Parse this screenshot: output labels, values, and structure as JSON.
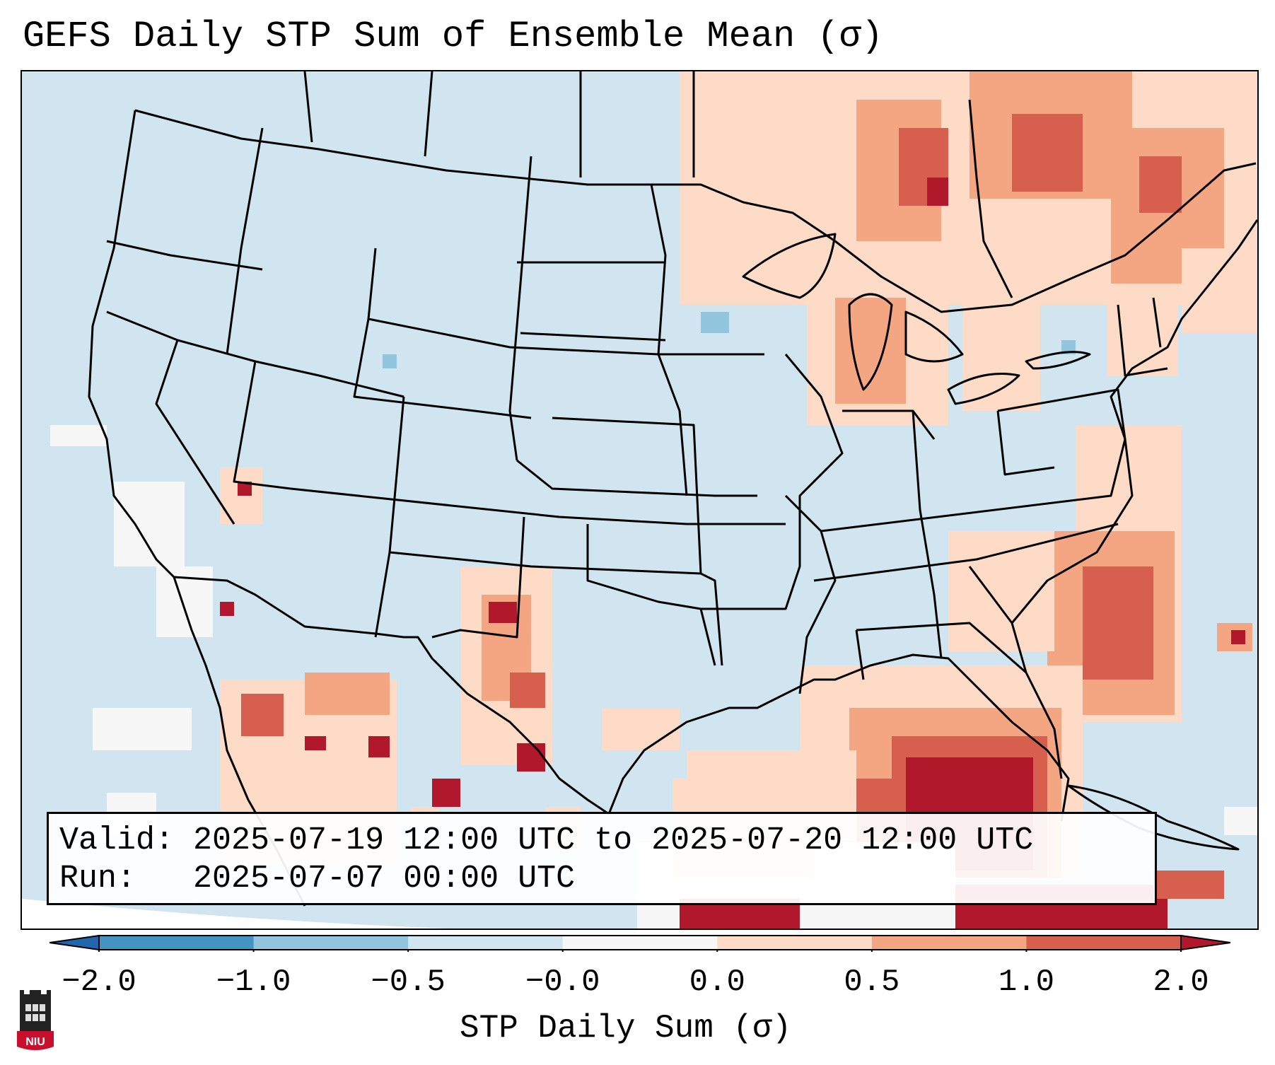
{
  "title": "GEFS Daily STP Sum of Ensemble Mean (σ)",
  "info": {
    "valid_line": "Valid: 2025-07-19 12:00 UTC to 2025-07-20 12:00 UTC",
    "run_line": "Run:   2025-07-07 00:00 UTC"
  },
  "colorbar": {
    "label": "STP Daily Sum (σ)",
    "ticks": [
      "−2.0",
      "−1.0",
      "−0.5",
      "−0.0",
      "0.0",
      "0.5",
      "1.0",
      "2.0"
    ],
    "colors": [
      "#2166ac",
      "#4393c3",
      "#92c5de",
      "#d1e5f0",
      "#f7f7f7",
      "#fddbc7",
      "#f4a582",
      "#d6604d",
      "#b2182b"
    ]
  },
  "logo": {
    "text": "NIU"
  },
  "map": {
    "background_color": "#d1e5f0",
    "region": "CONUS",
    "highlighted_areas": [
      "Ontario / Quebec",
      "Great Lakes",
      "Southwest US / Arizona",
      "New Mexico / West Texas",
      "Florida / Gulf of Mexico",
      "Carolinas Atlantic coast",
      "Caribbean"
    ]
  }
}
